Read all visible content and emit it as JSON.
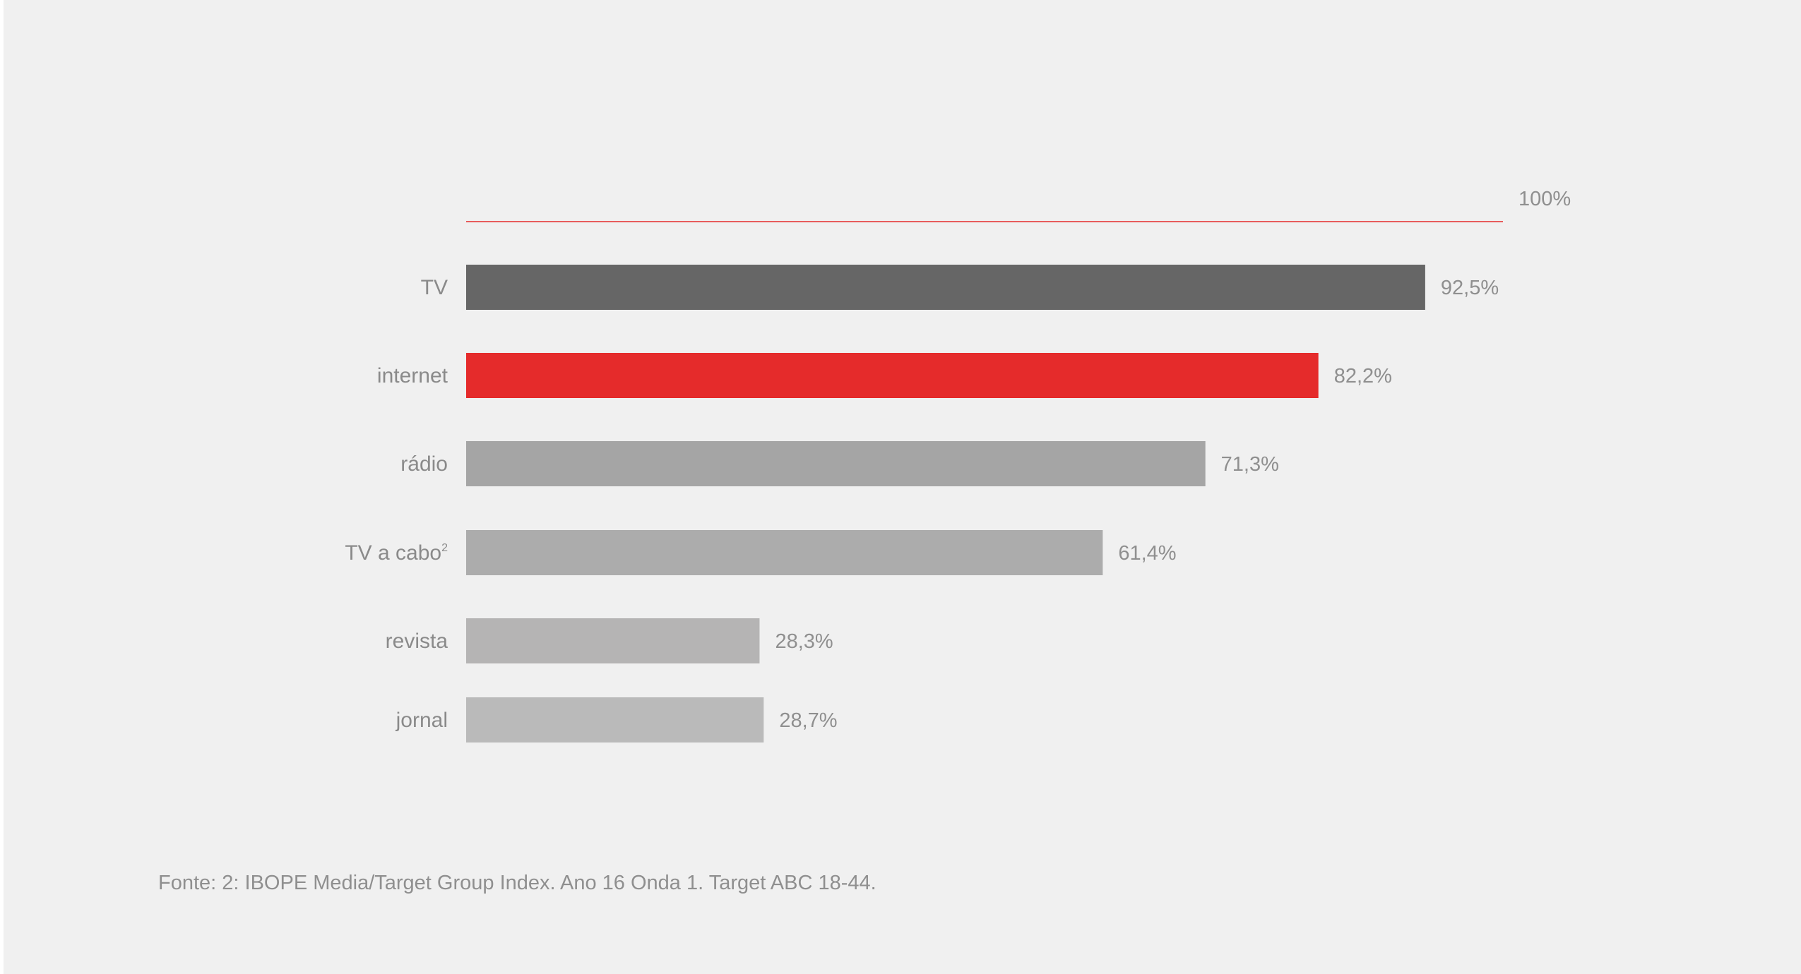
{
  "chart_data": {
    "type": "bar",
    "orientation": "horizontal",
    "reference_line": {
      "value": 100,
      "label": "100%",
      "color": "#e52b2b"
    },
    "xlim": [
      0,
      100
    ],
    "categories": [
      {
        "label": "TV",
        "superscript": "",
        "value": 92.5,
        "value_label": "92,5%",
        "color": "#666666"
      },
      {
        "label": "internet",
        "superscript": "",
        "value": 82.2,
        "value_label": "82,2%",
        "color": "#e52b2b"
      },
      {
        "label": "rádio",
        "superscript": "",
        "value": 71.3,
        "value_label": "71,3%",
        "color": "#a5a5a5"
      },
      {
        "label": "TV a cabo",
        "superscript": "2",
        "value": 61.4,
        "value_label": "61,4%",
        "color": "#acacac"
      },
      {
        "label": "revista",
        "superscript": "",
        "value": 28.3,
        "value_label": "28,3%",
        "color": "#b5b4b4"
      },
      {
        "label": "jornal",
        "superscript": "",
        "value": 28.7,
        "value_label": "28,7%",
        "color": "#bababa"
      }
    ],
    "grid": false,
    "legend": "none"
  },
  "footer": {
    "source": "Fonte: 2: IBOPE Media/Target Group Index. Ano 16 Onda 1. Target ABC 18-44."
  }
}
